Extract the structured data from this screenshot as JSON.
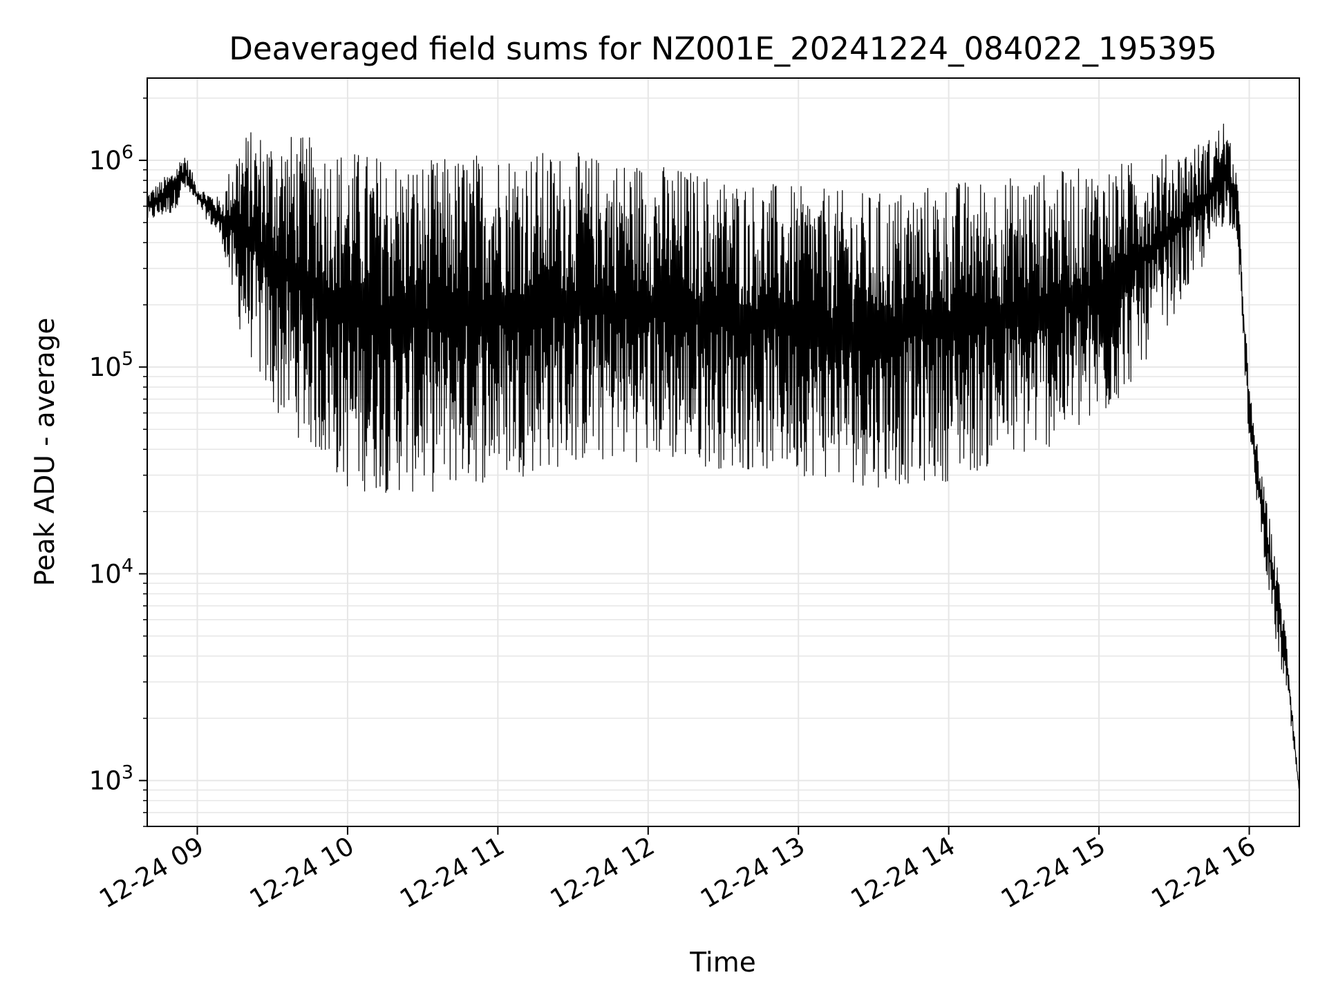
{
  "chart_data": {
    "type": "line",
    "title": "Deaveraged field sums for NZ001E_20241224_084022_195395",
    "xlabel": "Time",
    "ylabel": "Peak ADU - average",
    "y_scale": "log",
    "grid": true,
    "line_color": "#000000",
    "grid_color": "#e6e6e6",
    "x_range": [
      "2024-12-24 08:40",
      "2024-12-24 16:20"
    ],
    "y_range": [
      600,
      2500000
    ],
    "x_ticks": [
      {
        "label": "12-24 09",
        "time": "2024-12-24 09:00"
      },
      {
        "label": "12-24 10",
        "time": "2024-12-24 10:00"
      },
      {
        "label": "12-24 11",
        "time": "2024-12-24 11:00"
      },
      {
        "label": "12-24 12",
        "time": "2024-12-24 12:00"
      },
      {
        "label": "12-24 13",
        "time": "2024-12-24 13:00"
      },
      {
        "label": "12-24 14",
        "time": "2024-12-24 14:00"
      },
      {
        "label": "12-24 15",
        "time": "2024-12-24 15:00"
      },
      {
        "label": "12-24 16",
        "time": "2024-12-24 16:00"
      }
    ],
    "y_ticks": [
      {
        "base": "10",
        "exp": "3",
        "value": 1000
      },
      {
        "base": "10",
        "exp": "4",
        "value": 10000
      },
      {
        "base": "10",
        "exp": "5",
        "value": 100000
      },
      {
        "base": "10",
        "exp": "6",
        "value": 1000000
      }
    ],
    "series": [
      {
        "x": [
          "2024-12-24 08:40",
          "2024-12-24 08:50",
          "2024-12-24 08:55",
          "2024-12-24 09:00",
          "2024-12-24 09:10",
          "2024-12-24 09:15",
          "2024-12-24 09:20",
          "2024-12-24 09:30",
          "2024-12-24 09:45",
          "2024-12-24 10:00",
          "2024-12-24 10:30",
          "2024-12-24 11:00",
          "2024-12-24 11:30",
          "2024-12-24 12:00",
          "2024-12-24 12:30",
          "2024-12-24 13:00",
          "2024-12-24 13:30",
          "2024-12-24 14:00",
          "2024-12-24 14:30",
          "2024-12-24 15:00",
          "2024-12-24 15:15",
          "2024-12-24 15:30",
          "2024-12-24 15:45",
          "2024-12-24 15:50",
          "2024-12-24 15:55",
          "2024-12-24 16:00",
          "2024-12-24 16:05",
          "2024-12-24 16:10",
          "2024-12-24 16:15",
          "2024-12-24 16:20"
        ],
        "upper": [
          700000,
          900000,
          1100000,
          750000,
          650000,
          1200000,
          1400000,
          1400000,
          1300000,
          1150000,
          1000000,
          1150000,
          1100000,
          1000000,
          850000,
          750000,
          700000,
          800000,
          850000,
          950000,
          1000000,
          1100000,
          1300000,
          1600000,
          900000,
          80000,
          30000,
          14000,
          5000,
          900
        ],
        "lower": [
          500000,
          550000,
          700000,
          600000,
          400000,
          170000,
          120000,
          60000,
          40000,
          25000,
          24000,
          28000,
          33000,
          35000,
          32000,
          30000,
          26000,
          28000,
          36000,
          50000,
          90000,
          180000,
          350000,
          500000,
          450000,
          40000,
          15000,
          5000,
          2500,
          850
        ]
      }
    ]
  }
}
